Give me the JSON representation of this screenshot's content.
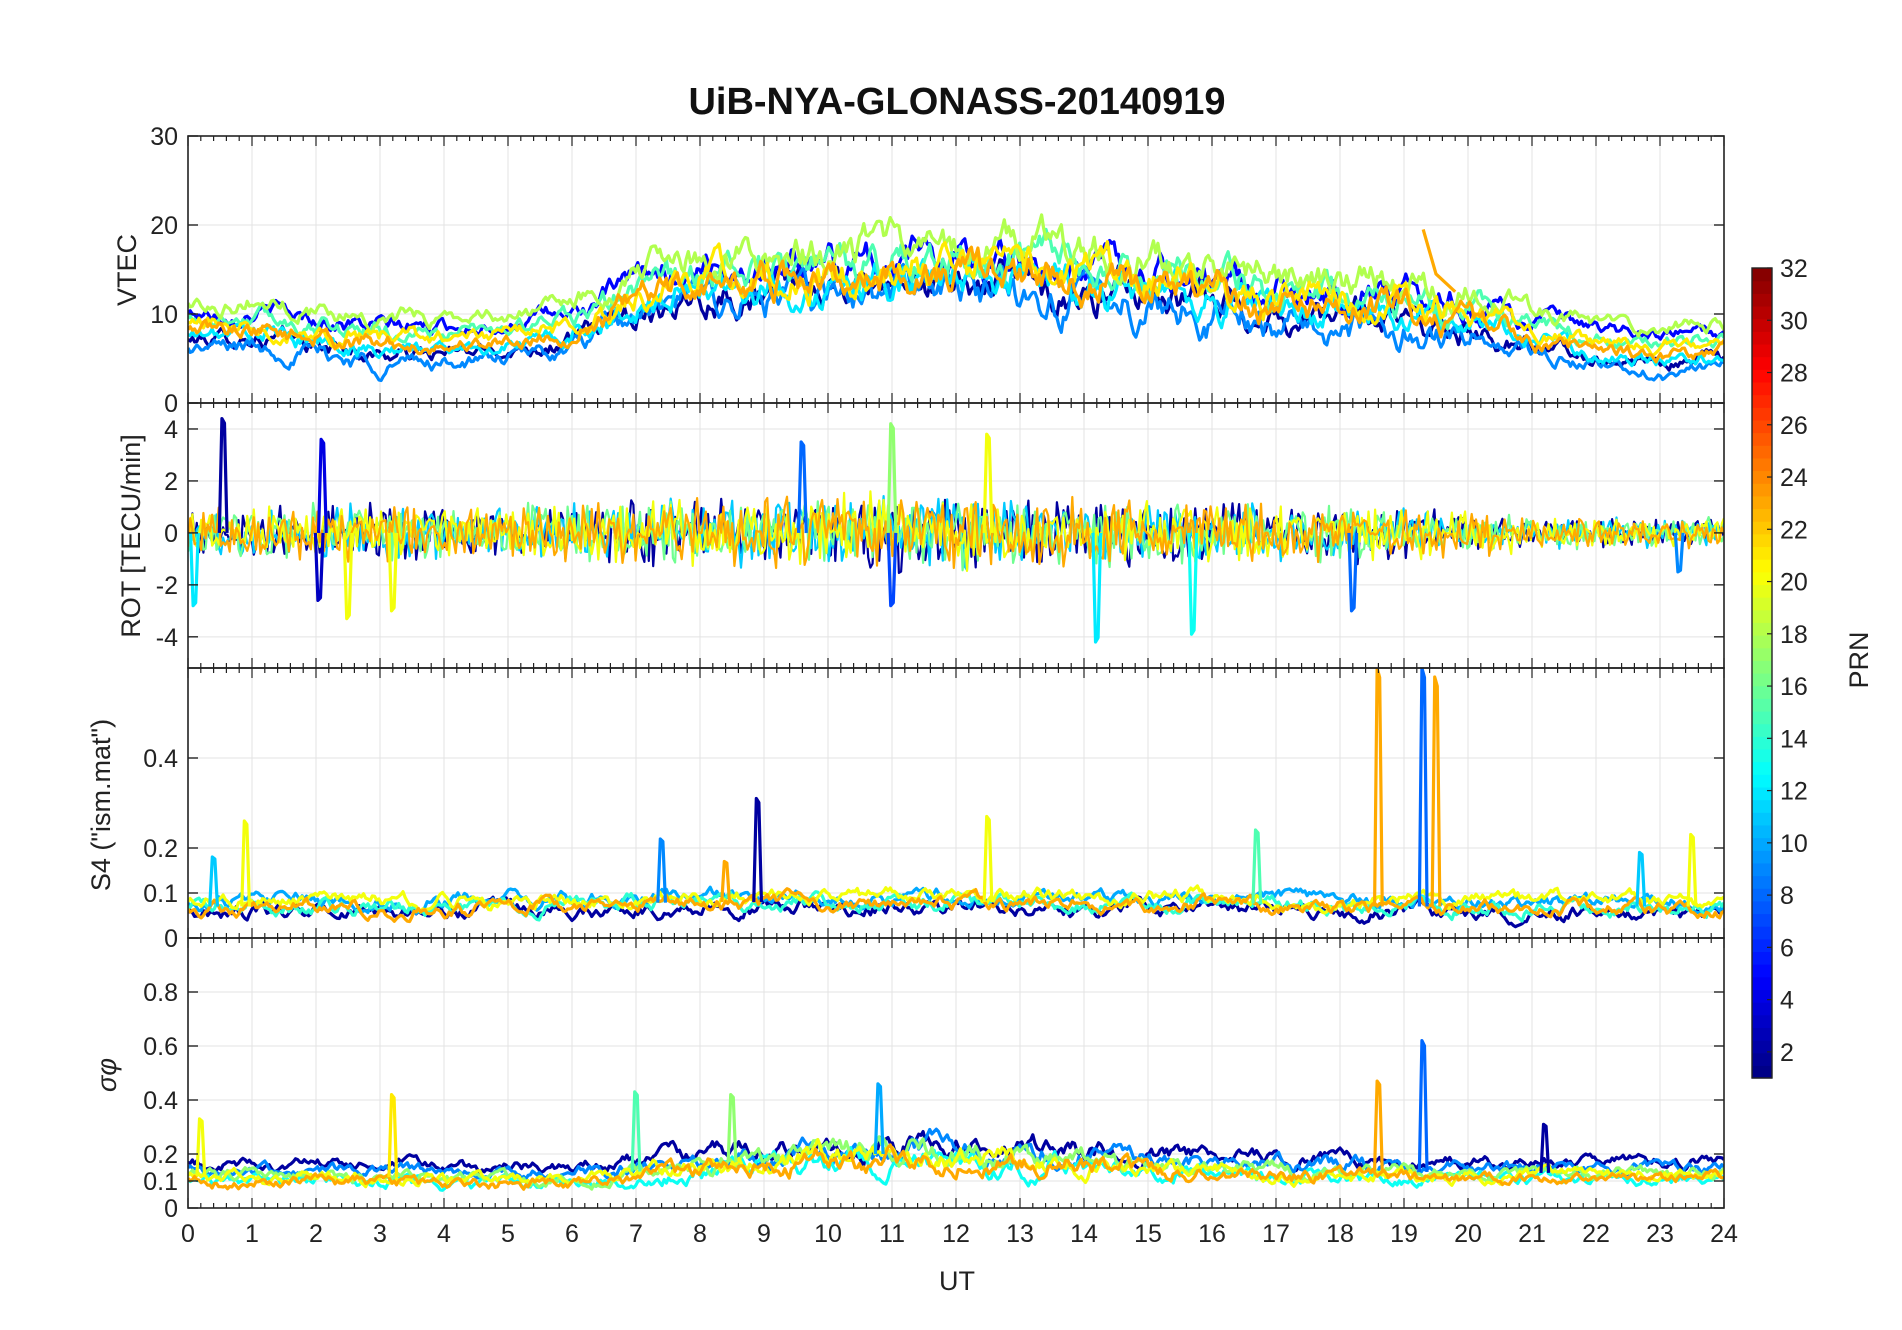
{
  "chart_data": {
    "type": "line",
    "title": "UiB-NYA-GLONASS-20140919",
    "xlabel": "UT",
    "xlim": [
      0,
      24
    ],
    "x_ticks": [
      "0",
      "1",
      "2",
      "3",
      "4",
      "5",
      "6",
      "7",
      "8",
      "9",
      "10",
      "11",
      "12",
      "13",
      "14",
      "15",
      "16",
      "17",
      "18",
      "19",
      "20",
      "21",
      "22",
      "23",
      "24"
    ],
    "colorbar": {
      "label": "PRN",
      "range": [
        1,
        32
      ],
      "ticks": [
        "2",
        "4",
        "6",
        "8",
        "10",
        "12",
        "14",
        "16",
        "18",
        "20",
        "22",
        "24",
        "26",
        "28",
        "30",
        "32"
      ]
    },
    "panels": [
      {
        "id": "vtec",
        "ylabel": "VTEC",
        "ylim": [
          0,
          30
        ],
        "y_ticks": [
          "0",
          "10",
          "20",
          "30"
        ],
        "y_tick_values": [
          0,
          10,
          20,
          30
        ],
        "envelope": {
          "x": [
            0,
            1,
            2,
            3,
            4,
            5,
            6,
            7,
            8,
            9,
            10,
            11,
            12,
            13,
            14,
            15,
            16,
            17,
            18,
            19,
            20,
            21,
            22,
            23,
            24
          ],
          "mid": [
            8.5,
            9,
            8,
            7,
            7,
            7.5,
            8.5,
            12,
            14,
            14,
            14,
            15,
            15,
            15,
            14,
            13.5,
            12.5,
            11.5,
            11,
            11,
            10,
            8,
            6.5,
            6,
            6.5
          ],
          "amp": [
            1.5,
            2,
            2,
            2,
            1.5,
            1.5,
            2,
            3,
            3.5,
            4,
            4,
            4,
            4,
            4.5,
            4.5,
            4,
            4,
            3.5,
            3.5,
            3.5,
            3,
            2,
            1.5,
            1.5,
            1.5
          ]
        },
        "series": [
          {
            "prn": 2,
            "offset": -1.5
          },
          {
            "prn": 5,
            "offset": 1.5
          },
          {
            "prn": 9,
            "offset": -2.5
          },
          {
            "prn": 12,
            "offset": -1.0
          },
          {
            "prn": 15,
            "offset": 0.8
          },
          {
            "prn": 18,
            "offset": 2.5
          },
          {
            "prn": 21,
            "offset": 0.3
          },
          {
            "prn": 23,
            "offset": -0.5
          }
        ],
        "annotations": [
          {
            "x": 19.3,
            "y": 19.5,
            "prn": 23,
            "note": "spike"
          }
        ]
      },
      {
        "id": "rot",
        "ylabel": "ROT [TECU/min]",
        "ylim": [
          -5.2,
          5
        ],
        "y_ticks": [
          "-4",
          "-2",
          "0",
          "2",
          "4"
        ],
        "y_tick_values": [
          -4,
          -2,
          0,
          2,
          4
        ],
        "envelope": {
          "x": [
            0,
            1,
            2,
            3,
            4,
            5,
            6,
            7,
            8,
            9,
            10,
            11,
            12,
            13,
            14,
            15,
            16,
            17,
            18,
            19,
            20,
            21,
            22,
            23,
            24
          ],
          "mid": [
            0,
            0,
            0,
            0,
            0,
            0,
            0,
            0,
            0,
            0,
            0,
            0,
            0,
            0,
            0,
            0,
            0,
            0,
            0,
            0,
            0,
            0,
            0,
            0,
            0
          ],
          "amp": [
            0.6,
            0.7,
            0.8,
            0.8,
            0.7,
            0.7,
            0.8,
            0.9,
            0.9,
            0.9,
            1.0,
            1.1,
            1.0,
            1.0,
            0.9,
            0.9,
            0.8,
            0.8,
            0.8,
            0.7,
            0.6,
            0.5,
            0.4,
            0.4,
            0.4
          ]
        },
        "series": [
          {
            "prn": 2,
            "offset": 0
          },
          {
            "prn": 11,
            "offset": 0
          },
          {
            "prn": 16,
            "offset": 0
          },
          {
            "prn": 20,
            "offset": 0
          },
          {
            "prn": 23,
            "offset": 0
          }
        ],
        "spikes": [
          {
            "x": 0.55,
            "y": 4.4,
            "prn": 2
          },
          {
            "x": 2.1,
            "y": 3.6,
            "prn": 4
          },
          {
            "x": 2.05,
            "y": -2.6,
            "prn": 3
          },
          {
            "x": 2.5,
            "y": -3.3,
            "prn": 20
          },
          {
            "x": 3.2,
            "y": -3.0,
            "prn": 20
          },
          {
            "x": 9.6,
            "y": 3.5,
            "prn": 8
          },
          {
            "x": 11.0,
            "y": 4.2,
            "prn": 17
          },
          {
            "x": 11.0,
            "y": -2.8,
            "prn": 7
          },
          {
            "x": 12.5,
            "y": 3.8,
            "prn": 20
          },
          {
            "x": 14.2,
            "y": -4.2,
            "prn": 12
          },
          {
            "x": 15.7,
            "y": -3.9,
            "prn": 13
          },
          {
            "x": 0.1,
            "y": -2.8,
            "prn": 12
          },
          {
            "x": 18.2,
            "y": -3.0,
            "prn": 8
          },
          {
            "x": 23.3,
            "y": -1.5,
            "prn": 9
          }
        ]
      },
      {
        "id": "s4",
        "ylabel": "S4 (\"ism.mat\")",
        "ylim": [
          0,
          0.6
        ],
        "y_ticks": [
          "0",
          "0.1",
          "0.2",
          "0.4"
        ],
        "y_tick_values": [
          0,
          0.1,
          0.2,
          0.4
        ],
        "envelope": {
          "x": [
            0,
            2,
            4,
            6,
            8,
            10,
            12,
            14,
            16,
            18,
            20,
            22,
            24
          ],
          "mid": [
            0.07,
            0.07,
            0.07,
            0.075,
            0.08,
            0.08,
            0.08,
            0.08,
            0.08,
            0.07,
            0.07,
            0.07,
            0.07
          ],
          "amp": [
            0.03,
            0.03,
            0.03,
            0.03,
            0.03,
            0.03,
            0.03,
            0.03,
            0.03,
            0.03,
            0.03,
            0.03,
            0.03
          ]
        },
        "series": [
          {
            "prn": 2,
            "offset": -0.012
          },
          {
            "prn": 10,
            "offset": 0.01
          },
          {
            "prn": 14,
            "offset": 0.0
          },
          {
            "prn": 20,
            "offset": 0.012
          },
          {
            "prn": 23,
            "offset": -0.005
          }
        ],
        "spikes": [
          {
            "x": 0.9,
            "y": 0.26,
            "prn": 20
          },
          {
            "x": 0.4,
            "y": 0.18,
            "prn": 11
          },
          {
            "x": 7.4,
            "y": 0.22,
            "prn": 9
          },
          {
            "x": 8.4,
            "y": 0.17,
            "prn": 23
          },
          {
            "x": 8.9,
            "y": 0.31,
            "prn": 2
          },
          {
            "x": 12.5,
            "y": 0.27,
            "prn": 20
          },
          {
            "x": 16.7,
            "y": 0.24,
            "prn": 15
          },
          {
            "x": 18.6,
            "y": 0.6,
            "prn": 23
          },
          {
            "x": 19.3,
            "y": 0.6,
            "prn": 8
          },
          {
            "x": 19.5,
            "y": 0.58,
            "prn": 23
          },
          {
            "x": 22.7,
            "y": 0.19,
            "prn": 11
          },
          {
            "x": 23.5,
            "y": 0.23,
            "prn": 20
          }
        ]
      },
      {
        "id": "sigma",
        "ylabel": "σφ",
        "ylim": [
          0,
          1
        ],
        "y_ticks": [
          "0",
          "0.1",
          "0.2",
          "0.4",
          "0.6",
          "0.8"
        ],
        "y_tick_values": [
          0,
          0.1,
          0.2,
          0.4,
          0.6,
          0.8
        ],
        "envelope": {
          "x": [
            0,
            2,
            4,
            6,
            8,
            10,
            12,
            14,
            16,
            18,
            20,
            22,
            24
          ],
          "mid": [
            0.12,
            0.12,
            0.11,
            0.11,
            0.16,
            0.2,
            0.2,
            0.18,
            0.15,
            0.14,
            0.13,
            0.13,
            0.13
          ],
          "amp": [
            0.04,
            0.04,
            0.04,
            0.04,
            0.06,
            0.08,
            0.08,
            0.07,
            0.05,
            0.05,
            0.04,
            0.04,
            0.04
          ]
        },
        "series": [
          {
            "prn": 2,
            "offset": 0.04
          },
          {
            "prn": 9,
            "offset": 0.02
          },
          {
            "prn": 13,
            "offset": -0.02
          },
          {
            "prn": 17,
            "offset": 0.0
          },
          {
            "prn": 20,
            "offset": -0.01
          },
          {
            "prn": 23,
            "offset": -0.02
          }
        ],
        "spikes": [
          {
            "x": 0.2,
            "y": 0.33,
            "prn": 20
          },
          {
            "x": 3.2,
            "y": 0.42,
            "prn": 21
          },
          {
            "x": 7.0,
            "y": 0.43,
            "prn": 15
          },
          {
            "x": 8.5,
            "y": 0.42,
            "prn": 17
          },
          {
            "x": 10.8,
            "y": 0.46,
            "prn": 10
          },
          {
            "x": 18.6,
            "y": 0.47,
            "prn": 23
          },
          {
            "x": 19.3,
            "y": 0.62,
            "prn": 8
          },
          {
            "x": 21.2,
            "y": 0.31,
            "prn": 2
          }
        ]
      }
    ]
  }
}
